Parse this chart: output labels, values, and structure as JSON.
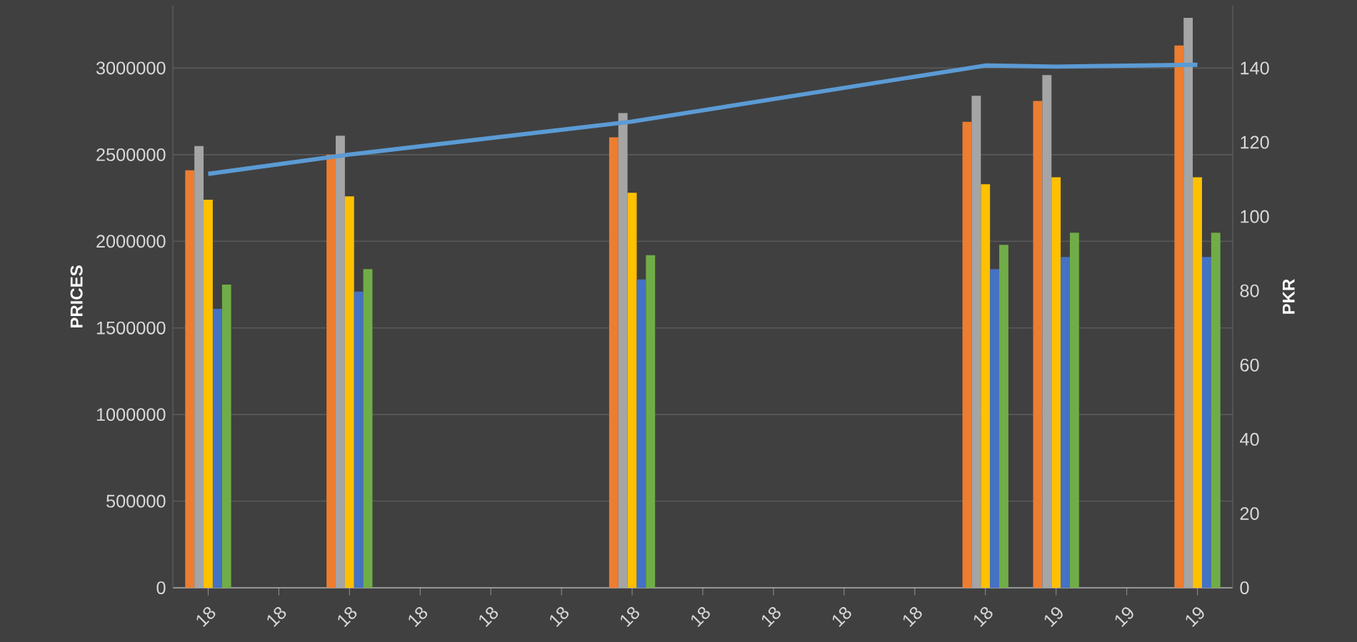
{
  "chart_data": {
    "type": "bar",
    "ylabel": "PRICES",
    "y2label": "PKR",
    "categories": [
      "18",
      "18",
      "18",
      "18",
      "18",
      "18",
      "18",
      "18",
      "18",
      "18",
      "18",
      "18",
      "19",
      "19",
      "19"
    ],
    "series": [
      {
        "color": "#ed7d31",
        "values": [
          2410000,
          null,
          2500000,
          null,
          null,
          null,
          2600000,
          null,
          null,
          null,
          null,
          2690000,
          2810000,
          null,
          3130000
        ]
      },
      {
        "color": "#a5a5a5",
        "values": [
          2550000,
          null,
          2610000,
          null,
          null,
          null,
          2740000,
          null,
          null,
          null,
          null,
          2840000,
          2960000,
          null,
          3290000
        ]
      },
      {
        "color": "#ffc000",
        "values": [
          2240000,
          null,
          2260000,
          null,
          null,
          null,
          2280000,
          null,
          null,
          null,
          null,
          2330000,
          2370000,
          null,
          2370000
        ]
      },
      {
        "color": "#4472c4",
        "values": [
          1610000,
          null,
          1710000,
          null,
          null,
          null,
          1780000,
          null,
          null,
          null,
          null,
          1840000,
          1910000,
          null,
          1910000
        ]
      },
      {
        "color": "#70ad47",
        "values": [
          1750000,
          null,
          1840000,
          null,
          null,
          null,
          1920000,
          null,
          null,
          null,
          null,
          1980000,
          2050000,
          null,
          2050000
        ]
      },
      {
        "type": "line",
        "axis": "y2",
        "color": "#5b9bd5",
        "values": [
          111.5,
          null,
          116.7,
          null,
          null,
          null,
          125.6,
          null,
          null,
          null,
          null,
          140.7,
          140.4,
          null,
          140.9
        ]
      }
    ],
    "ylim": [
      0,
      3360000
    ],
    "yticks": [
      0,
      500000,
      1000000,
      1500000,
      2000000,
      2500000,
      3000000
    ],
    "y2lim": [
      0,
      156.8
    ],
    "y2ticks": [
      0,
      20,
      40,
      60,
      80,
      100,
      120,
      140
    ],
    "grid": "y"
  }
}
